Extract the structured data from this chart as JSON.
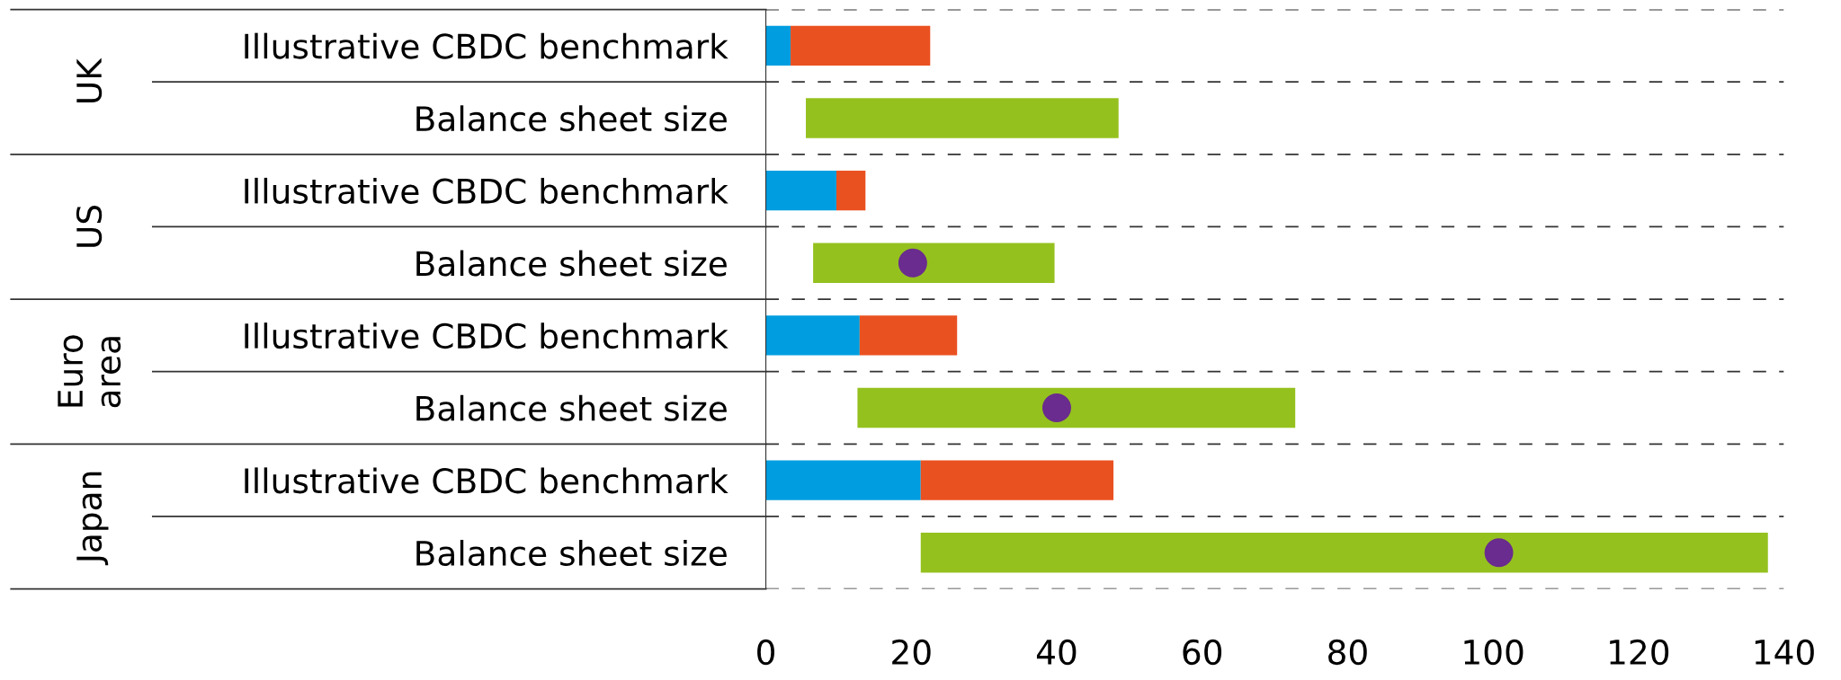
{
  "chart_data": {
    "type": "bar",
    "orientation": "horizontal",
    "stacked": true,
    "categories": [
      "Illustrative CBDC benchmark",
      "Balance sheet size",
      "Illustrative CBDC benchmark",
      "Balance sheet size",
      "Illustrative CBDC benchmark",
      "Balance sheet size",
      "Illustrative CBDC benchmark",
      "Balance sheet size"
    ],
    "series": [
      {
        "color": "#009ee0",
        "values": [
          3.4,
          null,
          9.7,
          null,
          12.9,
          null,
          21.3,
          null
        ]
      },
      {
        "color": "#ea5121",
        "values": [
          19.2,
          null,
          4,
          null,
          13.4,
          null,
          26.5,
          null
        ]
      },
      {
        "color": "#95c11f",
        "base": [
          null,
          5.5,
          null,
          6.5,
          null,
          12.6,
          null,
          21.3
        ],
        "values": [
          null,
          43,
          null,
          33.2,
          null,
          60.2,
          null,
          116.5
        ]
      },
      {
        "type": "scatter",
        "color": "#6a2c8e",
        "marker": "circle",
        "values": [
          null,
          null,
          null,
          20.2,
          null,
          40,
          null,
          100.8
        ]
      }
    ],
    "annotations": [
      "UK",
      "US",
      "Euro area",
      "Japan"
    ],
    "xlim": [
      0,
      140
    ],
    "xticks": [
      0,
      20,
      40,
      60,
      80,
      100,
      120,
      140
    ],
    "grid": "y"
  }
}
